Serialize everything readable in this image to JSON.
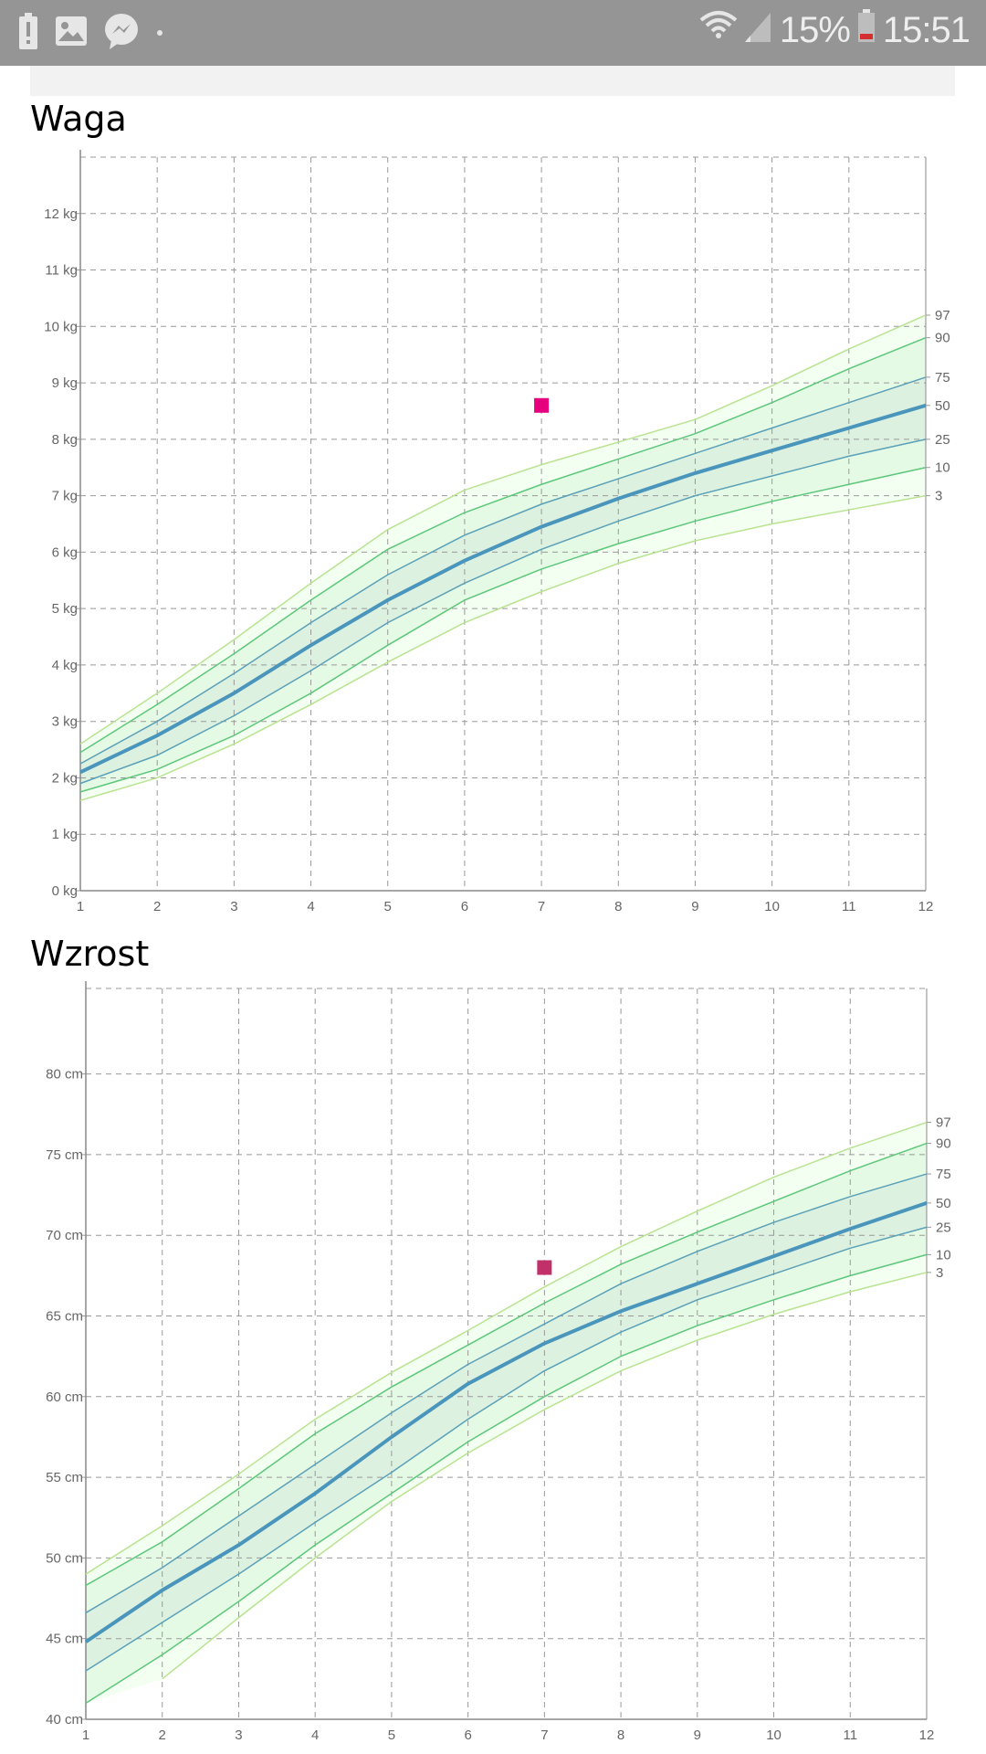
{
  "status_bar": {
    "battery_percent": "15%",
    "time": "15:51",
    "icons": [
      "alert-icon",
      "gallery-icon",
      "messenger-icon",
      "dot-icon",
      "wifi-icon",
      "signal-icon",
      "battery-icon"
    ]
  },
  "colors": {
    "p97_3": "#b9e391",
    "p90_10": "#5cc77a",
    "p75_25": "#5aa0b8",
    "p50": "#4a95bb",
    "band_outer": "#f3fff1",
    "band_mid": "#e5fae4",
    "band_inner": "#dcf1e0",
    "weight_point": "#e6007e",
    "height_point": "#c2306a"
  },
  "chart_data": [
    {
      "type": "line",
      "title": "Waga",
      "unit": "kg",
      "x": [
        1,
        2,
        3,
        4,
        5,
        6,
        7,
        8,
        9,
        10,
        11,
        12
      ],
      "xlim": [
        1,
        12
      ],
      "ylim": [
        0,
        13
      ],
      "yticks": [
        0,
        1,
        2,
        3,
        4,
        5,
        6,
        7,
        8,
        9,
        10,
        11,
        12
      ],
      "series": [
        {
          "name": "97",
          "values": [
            2.6,
            3.5,
            4.45,
            5.45,
            6.4,
            7.1,
            7.55,
            7.95,
            8.35,
            8.95,
            9.6,
            10.2
          ]
        },
        {
          "name": "90",
          "values": [
            2.45,
            3.3,
            4.2,
            5.15,
            6.05,
            6.7,
            7.2,
            7.65,
            8.1,
            8.65,
            9.25,
            9.8
          ]
        },
        {
          "name": "75",
          "values": [
            2.25,
            3.0,
            3.85,
            4.75,
            5.6,
            6.3,
            6.85,
            7.3,
            7.75,
            8.2,
            8.65,
            9.1
          ]
        },
        {
          "name": "50",
          "values": [
            2.1,
            2.75,
            3.5,
            4.35,
            5.15,
            5.85,
            6.45,
            6.95,
            7.4,
            7.8,
            8.2,
            8.6
          ]
        },
        {
          "name": "25",
          "values": [
            1.9,
            2.4,
            3.1,
            3.9,
            4.75,
            5.45,
            6.05,
            6.55,
            7.0,
            7.35,
            7.7,
            8.0
          ]
        },
        {
          "name": "10",
          "values": [
            1.75,
            2.15,
            2.75,
            3.5,
            4.35,
            5.15,
            5.7,
            6.15,
            6.55,
            6.9,
            7.2,
            7.5
          ]
        },
        {
          "name": "3",
          "values": [
            1.6,
            2.0,
            2.6,
            3.3,
            4.05,
            4.75,
            5.3,
            5.8,
            6.2,
            6.5,
            6.75,
            7.0
          ]
        }
      ],
      "measurement": {
        "x": 7,
        "y": 8.6
      }
    },
    {
      "type": "line",
      "title": "Wzrost",
      "unit": "cm",
      "x": [
        1,
        2,
        3,
        4,
        5,
        6,
        7,
        8,
        9,
        10,
        11,
        12
      ],
      "xlim": [
        1,
        12
      ],
      "ylim": [
        40,
        85.3
      ],
      "yticks": [
        40,
        45,
        50,
        55,
        60,
        65,
        70,
        75,
        80
      ],
      "series": [
        {
          "name": "97",
          "values": [
            49,
            52,
            55.2,
            58.6,
            61.5,
            64.1,
            66.8,
            69.3,
            71.5,
            73.6,
            75.4,
            77
          ]
        },
        {
          "name": "90",
          "values": [
            48.3,
            51,
            54.3,
            57.7,
            60.6,
            63.2,
            65.8,
            68.2,
            70.2,
            72.1,
            74,
            75.7
          ]
        },
        {
          "name": "75",
          "values": [
            46.6,
            49.4,
            52.6,
            55.8,
            59,
            62,
            64.5,
            67,
            69,
            70.8,
            72.4,
            73.8
          ]
        },
        {
          "name": "50",
          "values": [
            44.8,
            48,
            50.8,
            54,
            57.5,
            60.8,
            63.3,
            65.3,
            67,
            68.7,
            70.4,
            72
          ]
        },
        {
          "name": "25",
          "values": [
            43,
            46,
            49,
            52.2,
            55.3,
            58.6,
            61.6,
            64,
            66,
            67.6,
            69.2,
            70.5
          ]
        },
        {
          "name": "10",
          "values": [
            41,
            44,
            47.3,
            50.8,
            54,
            57.2,
            60,
            62.5,
            64.4,
            66,
            67.5,
            68.8
          ]
        },
        {
          "name": "3",
          "values": [
            null,
            42.5,
            46.3,
            50,
            53.5,
            56.5,
            59.2,
            61.6,
            63.5,
            65.1,
            66.5,
            67.7
          ]
        }
      ],
      "measurement": {
        "x": 7,
        "y": 68
      }
    }
  ]
}
